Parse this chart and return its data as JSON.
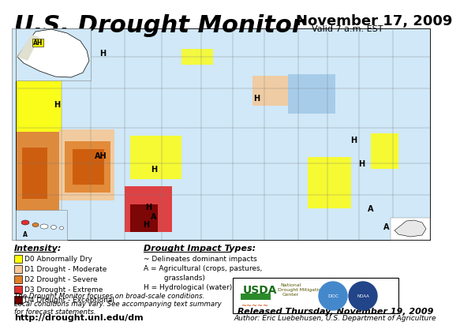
{
  "title": "U.S. Drought Monitor",
  "date_line1": "November 17, 2009",
  "date_line2": "Valid 7 a.m. EST",
  "released_line": "Released Thursday, November 19, 2009",
  "author_line": "Author: Eric Luebehusen, U.S. Department of Agriculture",
  "url": "http://drought.unl.edu/dm",
  "bg_color": "#ffffff",
  "intensity_label": "Intensity:",
  "drought_types_label": "Drought Impact Types:",
  "legend_items": [
    {
      "label": "D0 Abnormally Dry",
      "color": "#ffff00"
    },
    {
      "label": "D1 Drought - Moderate",
      "color": "#f5c896"
    },
    {
      "label": "D2 Drought - Severe",
      "color": "#e08028"
    },
    {
      "label": "D3 Drought - Extreme",
      "color": "#e03030"
    },
    {
      "label": "D4 Drought - Exceptional",
      "color": "#730000"
    }
  ],
  "impact_lines": [
    "~ Delineates dominant impacts",
    "A = Agricultural (crops, pastures,",
    "         grasslands)",
    "H = Hydrological (water)"
  ],
  "disclaimer_lines": [
    "The Drought Monitor focuses on broad-scale conditions.",
    "Local conditions may vary. See accompanying text summary",
    "for forecast statements."
  ],
  "map_bg": "#d0e8f8",
  "title_fontsize": 22,
  "date_fontsize": 13,
  "label_fontsize": 7.5
}
